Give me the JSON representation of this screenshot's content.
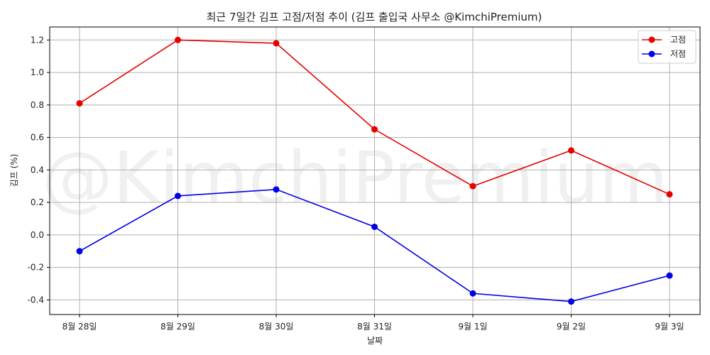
{
  "chart_data": {
    "type": "line",
    "title": "최근 7일간 김프 고점/저점 추이 (김프 출입국 사무소 @KimchiPremium)",
    "xlabel": "날짜",
    "ylabel": "김프 (%)",
    "categories": [
      "8월 28일",
      "8월 29일",
      "8월 30일",
      "8월 31일",
      "9월 1일",
      "9월 2일",
      "9월 3일"
    ],
    "series": [
      {
        "name": "고점",
        "color": "#e60000",
        "values": [
          0.81,
          1.2,
          1.18,
          0.65,
          0.3,
          0.52,
          0.25
        ]
      },
      {
        "name": "저점",
        "color": "#0000e6",
        "values": [
          -0.1,
          0.24,
          0.28,
          0.05,
          -0.36,
          -0.41,
          -0.25
        ]
      }
    ],
    "ylim": [
      -0.49,
      1.28
    ],
    "yticks": [
      -0.4,
      -0.2,
      0.0,
      0.2,
      0.4,
      0.6,
      0.8,
      1.0,
      1.2
    ],
    "ytick_labels": [
      "-0.4",
      "-0.2",
      "0.0",
      "0.2",
      "0.4",
      "0.6",
      "0.8",
      "1.0",
      "1.2"
    ],
    "grid": true,
    "legend_position": "top-right",
    "watermark": "@KimchiPremium"
  }
}
